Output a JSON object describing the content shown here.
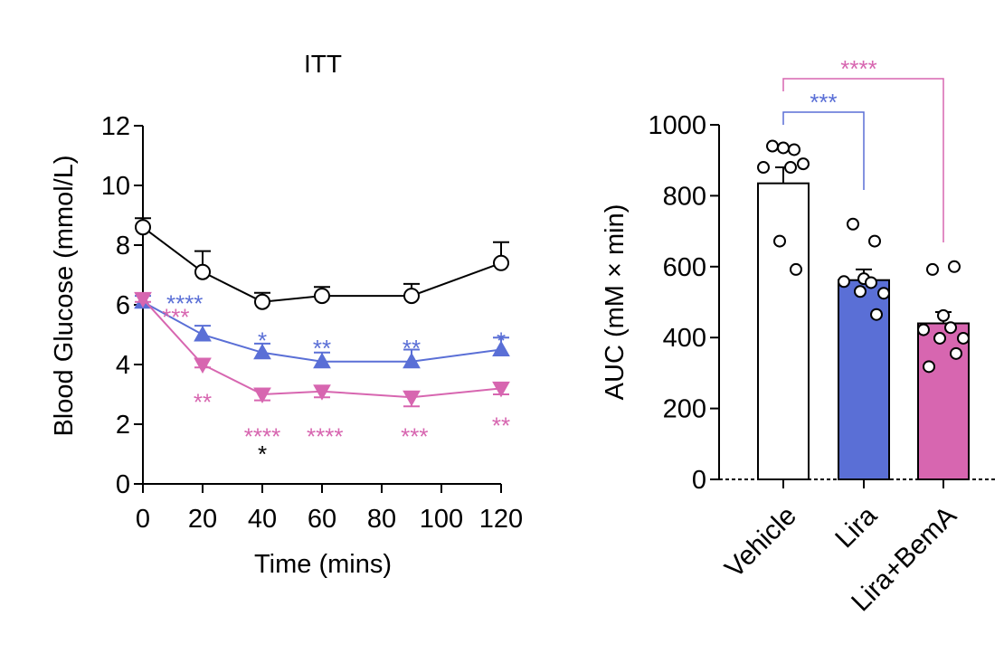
{
  "colors": {
    "vehicle": "#ffffff",
    "lira": "#5a6fd6",
    "lira_bema": "#d766b0",
    "axis": "#000000"
  },
  "chart_data": [
    {
      "type": "line",
      "title": "ITT",
      "xlabel": "Time (mins)",
      "ylabel": "Blood Glucose (mmol/L)",
      "xlim": [
        0,
        120
      ],
      "ylim": [
        0,
        12
      ],
      "x": [
        0,
        20,
        40,
        60,
        90,
        120
      ],
      "x_ticks": [
        0,
        20,
        40,
        60,
        80,
        100,
        120
      ],
      "y_ticks": [
        0,
        2,
        4,
        6,
        8,
        10,
        12
      ],
      "series": [
        {
          "name": "Vehicle",
          "marker": "circle",
          "color": "#ffffff",
          "values": [
            8.6,
            7.1,
            6.1,
            6.3,
            6.3,
            7.4
          ],
          "errors": [
            0.3,
            0.7,
            0.3,
            0.3,
            0.4,
            0.7
          ]
        },
        {
          "name": "Lira",
          "marker": "triangle-up",
          "color": "#5a6fd6",
          "values": [
            6.1,
            5.0,
            4.4,
            4.1,
            4.1,
            4.5
          ],
          "errors": [
            0.2,
            0.3,
            0.3,
            0.3,
            0.4,
            0.4
          ]
        },
        {
          "name": "Lira+BemA",
          "marker": "triangle-down",
          "color": "#d766b0",
          "values": [
            6.2,
            4.0,
            3.0,
            3.1,
            2.9,
            3.2
          ],
          "errors": [
            0.1,
            0.1,
            0.2,
            0.2,
            0.3,
            0.2
          ]
        }
      ],
      "annotations": [
        {
          "text": "****",
          "x": 14,
          "y": 6.2,
          "color": "#5a6fd6"
        },
        {
          "text": "***",
          "x": 11,
          "y": 5.75,
          "color": "#d766b0"
        },
        {
          "text": "*",
          "x": 40,
          "y": 4.95,
          "color": "#5a6fd6"
        },
        {
          "text": "**",
          "x": 60,
          "y": 4.7,
          "color": "#5a6fd6"
        },
        {
          "text": "**",
          "x": 90,
          "y": 4.7,
          "color": "#5a6fd6"
        },
        {
          "text": "*",
          "x": 120,
          "y": 4.95,
          "color": "#5a6fd6"
        },
        {
          "text": "**",
          "x": 20,
          "y": 2.9,
          "color": "#d766b0"
        },
        {
          "text": "****",
          "x": 40,
          "y": 1.75,
          "color": "#d766b0"
        },
        {
          "text": "****",
          "x": 61,
          "y": 1.75,
          "color": "#d766b0"
        },
        {
          "text": "***",
          "x": 91,
          "y": 1.75,
          "color": "#d766b0"
        },
        {
          "text": "**",
          "x": 120,
          "y": 2.1,
          "color": "#d766b0"
        },
        {
          "text": "*",
          "x": 40,
          "y": 1.15,
          "color": "#000000"
        }
      ]
    },
    {
      "type": "bar",
      "title": "",
      "xlabel": "",
      "ylabel": "AUC (mM × min)",
      "ylim": [
        0,
        1000
      ],
      "y_ticks": [
        0,
        200,
        400,
        600,
        800,
        1000
      ],
      "categories": [
        "Vehicle",
        "Lira",
        "Lira+BemA"
      ],
      "values": [
        835,
        562,
        440
      ],
      "errors": [
        45,
        30,
        32
      ],
      "colors": [
        "#ffffff",
        "#5a6fd6",
        "#d766b0"
      ],
      "points": [
        [
          940,
          930,
          935,
          880,
          880,
          890,
          672,
          592
        ],
        [
          720,
          672,
          566,
          558,
          555,
          525,
          530,
          465
        ],
        [
          592,
          600,
          462,
          422,
          428,
          398,
          398,
          355,
          318
        ]
      ],
      "comparisons": [
        {
          "from": "Vehicle",
          "to": "Lira",
          "text": "***",
          "color": "#5a6fd6"
        },
        {
          "from": "Vehicle",
          "to": "Lira+BemA",
          "text": "****",
          "color": "#d766b0"
        }
      ]
    }
  ]
}
